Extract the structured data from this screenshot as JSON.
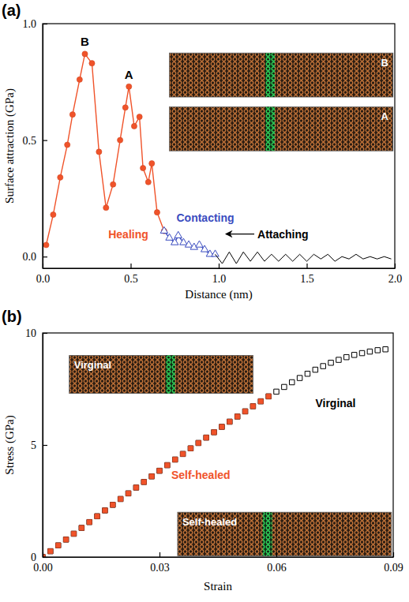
{
  "chart_data": [
    {
      "type": "line",
      "title": "(a)",
      "x_label": "Distance (nm)",
      "y_label": "Surface attraction (GPa)",
      "xlim": [
        0,
        2.0
      ],
      "xticks": [
        {
          "value": 0,
          "label": "0.0"
        },
        {
          "value": 0.5,
          "label": "0.5"
        },
        {
          "value": 1.0,
          "label": "1.0"
        },
        {
          "value": 1.5,
          "label": "1.5"
        },
        {
          "value": 2.0,
          "label": "2.0"
        }
      ],
      "ylim": [
        -0.05,
        1.0
      ],
      "yticks": [
        {
          "value": 0,
          "label": "0.0"
        },
        {
          "value": 0.5,
          "label": "0.5"
        },
        {
          "value": 1.0,
          "label": "1.0"
        }
      ],
      "annotations": [
        "B",
        "A"
      ],
      "insets": [
        "B",
        "A"
      ],
      "series": [
        {
          "name": "Healing",
          "color": "#f0532a",
          "marker": "circle",
          "line_style": "solid",
          "x": [
            0.02,
            0.06,
            0.1,
            0.14,
            0.17,
            0.21,
            0.24,
            0.28,
            0.32,
            0.36,
            0.4,
            0.44,
            0.47,
            0.49,
            0.52,
            0.55,
            0.57,
            0.6,
            0.62,
            0.65,
            0.69
          ],
          "values": [
            0.05,
            0.18,
            0.34,
            0.48,
            0.61,
            0.76,
            0.87,
            0.83,
            0.45,
            0.21,
            0.31,
            0.5,
            0.64,
            0.73,
            0.56,
            0.6,
            0.38,
            0.32,
            0.4,
            0.19,
            0.11
          ]
        },
        {
          "name": "Contacting",
          "color": "#3a4cc0",
          "marker": "triangle-open",
          "line_style": "solid",
          "x": [
            0.69,
            0.72,
            0.75,
            0.77,
            0.8,
            0.83,
            0.86,
            0.89,
            0.92,
            0.95,
            0.98
          ],
          "values": [
            0.11,
            0.08,
            0.06,
            0.09,
            0.06,
            0.05,
            0.04,
            0.05,
            0.03,
            0.01,
            0.01
          ]
        },
        {
          "name": "Attaching",
          "color": "#000000",
          "marker": "none",
          "line_style": "solid",
          "x": [
            0.98,
            1.02,
            1.06,
            1.1,
            1.14,
            1.18,
            1.22,
            1.26,
            1.3,
            1.34,
            1.38,
            1.42,
            1.46,
            1.5,
            1.54,
            1.58,
            1.62,
            1.66,
            1.7,
            1.74,
            1.78,
            1.82,
            1.86,
            1.9,
            1.94,
            1.98
          ],
          "values": [
            0.01,
            -0.03,
            0.02,
            -0.03,
            0.02,
            -0.02,
            0.02,
            -0.02,
            0.01,
            -0.02,
            0.01,
            -0.02,
            0.01,
            -0.02,
            0.01,
            -0.01,
            0.01,
            -0.02,
            0.0,
            -0.01,
            0.01,
            -0.01,
            0.0,
            -0.01,
            0.0,
            -0.01
          ]
        }
      ]
    },
    {
      "type": "scatter",
      "title": "(b)",
      "x_label": "Strain",
      "y_label": "Stress (GPa)",
      "xlim": [
        0,
        0.09
      ],
      "xticks": [
        {
          "value": 0,
          "label": "0.00"
        },
        {
          "value": 0.03,
          "label": "0.03"
        },
        {
          "value": 0.06,
          "label": "0.06"
        },
        {
          "value": 0.09,
          "label": "0.09"
        }
      ],
      "ylim": [
        0,
        10
      ],
      "yticks": [
        0,
        5,
        10
      ],
      "insets": [
        "Virginal",
        "Self-healed"
      ],
      "series": [
        {
          "name": "Virginal",
          "color": "#000000",
          "marker": "square-open",
          "x": [
            0,
            0.002,
            0.004,
            0.006,
            0.008,
            0.01,
            0.012,
            0.014,
            0.016,
            0.018,
            0.02,
            0.022,
            0.024,
            0.026,
            0.028,
            0.03,
            0.032,
            0.034,
            0.036,
            0.038,
            0.04,
            0.042,
            0.044,
            0.046,
            0.048,
            0.05,
            0.052,
            0.054,
            0.056,
            0.058,
            0.06,
            0.062,
            0.064,
            0.066,
            0.068,
            0.07,
            0.072,
            0.074,
            0.076,
            0.078,
            0.08,
            0.082,
            0.084,
            0.086,
            0.088
          ],
          "values": [
            0,
            0.26,
            0.52,
            0.78,
            1.04,
            1.3,
            1.56,
            1.82,
            2.08,
            2.33,
            2.59,
            2.84,
            3.1,
            3.35,
            3.6,
            3.85,
            4.1,
            4.35,
            4.6,
            4.85,
            5.09,
            5.33,
            5.57,
            5.81,
            6.04,
            6.27,
            6.5,
            6.73,
            6.95,
            7.17,
            7.38,
            7.59,
            7.8,
            7.99,
            8.18,
            8.36,
            8.52,
            8.67,
            8.8,
            8.92,
            9.02,
            9.1,
            9.17,
            9.23,
            9.27
          ]
        },
        {
          "name": "Self-healed",
          "color": "#f0532a",
          "marker": "square",
          "x": [
            0,
            0.002,
            0.004,
            0.006,
            0.008,
            0.01,
            0.012,
            0.014,
            0.016,
            0.018,
            0.02,
            0.022,
            0.024,
            0.026,
            0.028,
            0.03,
            0.032,
            0.034,
            0.036,
            0.038,
            0.04,
            0.042,
            0.044,
            0.046,
            0.048,
            0.05,
            0.052,
            0.054,
            0.056,
            0.058
          ],
          "values": [
            0,
            0.26,
            0.52,
            0.78,
            1.04,
            1.3,
            1.56,
            1.82,
            2.08,
            2.33,
            2.59,
            2.84,
            3.1,
            3.35,
            3.6,
            3.85,
            4.1,
            4.35,
            4.6,
            4.85,
            5.09,
            5.33,
            5.57,
            5.81,
            6.04,
            6.27,
            6.5,
            6.73,
            6.95,
            7.17
          ]
        }
      ]
    }
  ]
}
